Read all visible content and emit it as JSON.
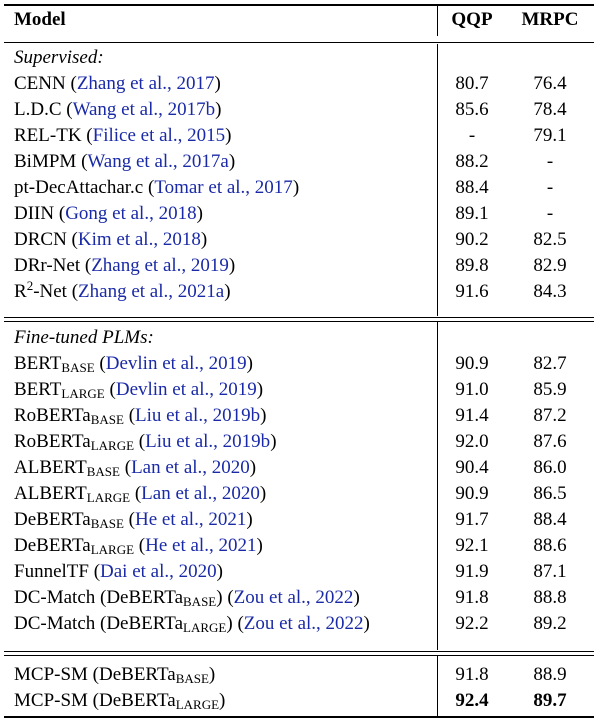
{
  "header": {
    "model": "Model",
    "qqp": "QQP",
    "mrpc": "MRPC"
  },
  "sections": [
    {
      "title": "Supervised:",
      "rows": [
        {
          "base": "CENN",
          "sub": "",
          "sup": "",
          "after": "",
          "cite": "Zhang et al., 2017",
          "tail": "",
          "qqp": "80.7",
          "mrpc": "76.4"
        },
        {
          "base": "L.D.C",
          "sub": "",
          "sup": "",
          "after": "",
          "cite": "Wang et al., 2017b",
          "tail": "",
          "qqp": "85.6",
          "mrpc": "78.4"
        },
        {
          "base": "REL-TK",
          "sub": "",
          "sup": "",
          "after": "",
          "cite": "Filice et al., 2015",
          "tail": "",
          "qqp": "-",
          "mrpc": "79.1"
        },
        {
          "base": "BiMPM",
          "sub": "",
          "sup": "",
          "after": "",
          "cite": "Wang et al., 2017a",
          "tail": "",
          "qqp": "88.2",
          "mrpc": "-"
        },
        {
          "base": "pt-DecAttachar.c",
          "sub": "",
          "sup": "",
          "after": "",
          "cite": "Tomar et al., 2017",
          "tail": "",
          "qqp": "88.4",
          "mrpc": "-"
        },
        {
          "base": "DIIN",
          "sub": "",
          "sup": "",
          "after": "",
          "cite": "Gong et al., 2018",
          "tail": "",
          "qqp": "89.1",
          "mrpc": "-"
        },
        {
          "base": "DRCN",
          "sub": "",
          "sup": "",
          "after": "",
          "cite": "Kim et al., 2018",
          "tail": "",
          "qqp": "90.2",
          "mrpc": "82.5"
        },
        {
          "base": "DRr-Net",
          "sub": "",
          "sup": "",
          "after": "",
          "cite": "Zhang et al., 2019",
          "tail": "",
          "qqp": "89.8",
          "mrpc": "82.9"
        },
        {
          "base": "R",
          "sub": "",
          "sup": "2",
          "after": "-Net",
          "cite": "Zhang et al., 2021a",
          "tail": "",
          "qqp": "91.6",
          "mrpc": "84.3"
        }
      ]
    },
    {
      "title": "Fine-tuned PLMs:",
      "rows": [
        {
          "base": "BERT",
          "sub": "BASE",
          "sup": "",
          "after": "",
          "cite": "Devlin et al., 2019",
          "tail": "",
          "qqp": "90.9",
          "mrpc": "82.7"
        },
        {
          "base": "BERT",
          "sub": "LARGE",
          "sup": "",
          "after": "",
          "cite": "Devlin et al., 2019",
          "tail": "",
          "qqp": "91.0",
          "mrpc": "85.9"
        },
        {
          "base": "RoBERTa",
          "sub": "BASE",
          "sup": "",
          "after": "",
          "cite": "Liu et al., 2019b",
          "tail": "",
          "qqp": "91.4",
          "mrpc": "87.2"
        },
        {
          "base": "RoBERTa",
          "sub": "LARGE",
          "sup": "",
          "after": "",
          "cite": "Liu et al., 2019b",
          "tail": "",
          "qqp": "92.0",
          "mrpc": "87.6"
        },
        {
          "base": "ALBERT",
          "sub": "BASE",
          "sup": "",
          "after": "",
          "cite": "Lan et al., 2020",
          "tail": "",
          "qqp": "90.4",
          "mrpc": "86.0"
        },
        {
          "base": "ALBERT",
          "sub": "LARGE",
          "sup": "",
          "after": "",
          "cite": "Lan et al., 2020",
          "tail": "",
          "qqp": "90.9",
          "mrpc": "86.5"
        },
        {
          "base": "DeBERTa",
          "sub": "BASE",
          "sup": "",
          "after": "",
          "cite": "He et al., 2021",
          "tail": "",
          "qqp": "91.7",
          "mrpc": "88.4"
        },
        {
          "base": "DeBERTa",
          "sub": "LARGE",
          "sup": "",
          "after": "",
          "cite": "He et al., 2021",
          "tail": "",
          "qqp": "92.1",
          "mrpc": "88.6"
        },
        {
          "base": "FunnelTF",
          "sub": "",
          "sup": "",
          "after": "",
          "cite": "Dai et al., 2020",
          "tail": "",
          "qqp": "91.9",
          "mrpc": "87.1"
        },
        {
          "base": "DC-Match (DeBERTa",
          "sub": "BASE",
          "sup": "",
          "after": ")",
          "cite": "Zou et al., 2022",
          "tail": "",
          "qqp": "91.8",
          "mrpc": "88.8"
        },
        {
          "base": "DC-Match (DeBERTa",
          "sub": "LARGE",
          "sup": "",
          "after": ")",
          "cite": "Zou et al., 2022",
          "tail": "",
          "qqp": "92.2",
          "mrpc": "89.2"
        }
      ]
    },
    {
      "title": "",
      "rows": [
        {
          "base": "MCP-SM (DeBERTa",
          "sub": "BASE",
          "sup": "",
          "after": ")",
          "cite": "",
          "tail": "",
          "qqp": "91.8",
          "mrpc": "88.9",
          "bold": false
        },
        {
          "base": "MCP-SM (DeBERTa",
          "sub": "LARGE",
          "sup": "",
          "after": ")",
          "cite": "",
          "tail": "",
          "qqp": "92.4",
          "mrpc": "89.7",
          "bold": true
        }
      ]
    }
  ]
}
